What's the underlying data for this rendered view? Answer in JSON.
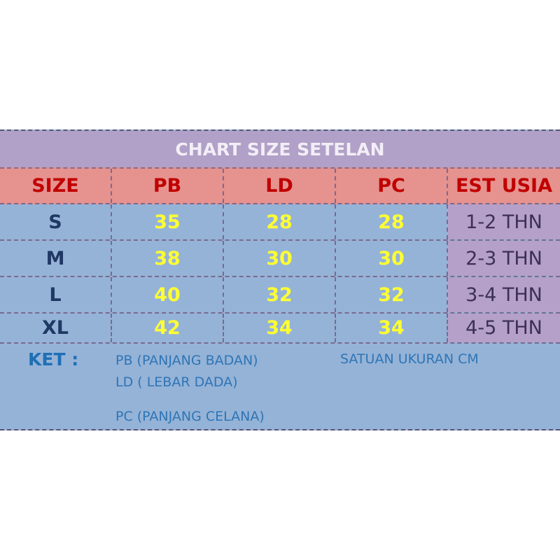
{
  "title": "CHART SIZE SETELAN",
  "headers": [
    "SIZE",
    "PB",
    "LD",
    "PC",
    "EST USIA"
  ],
  "rows": [
    [
      "S",
      "35",
      "28",
      "28",
      "1-2 THN"
    ],
    [
      "M",
      "38",
      "30",
      "30",
      "2-3 THN"
    ],
    [
      "L",
      "40",
      "32",
      "32",
      "3-4 THN"
    ],
    [
      "XL",
      "42",
      "34",
      "34",
      "4-5 THN"
    ]
  ],
  "notes": {
    "label": "KET :",
    "pb": "PB (PANJANG BADAN)",
    "ld": "LD ( LEBAR DADA)",
    "pc": "PC (PANJANG CELANA)",
    "unit": "SATUAN UKURAN CM"
  },
  "colors": {
    "title_bg": "#b1a0c7",
    "header_bg": "#e6928f",
    "body_bg": "#95b3d7",
    "age_bg": "#b4a0c8",
    "header_text": "#c00000",
    "value_text": "#ffff33"
  }
}
